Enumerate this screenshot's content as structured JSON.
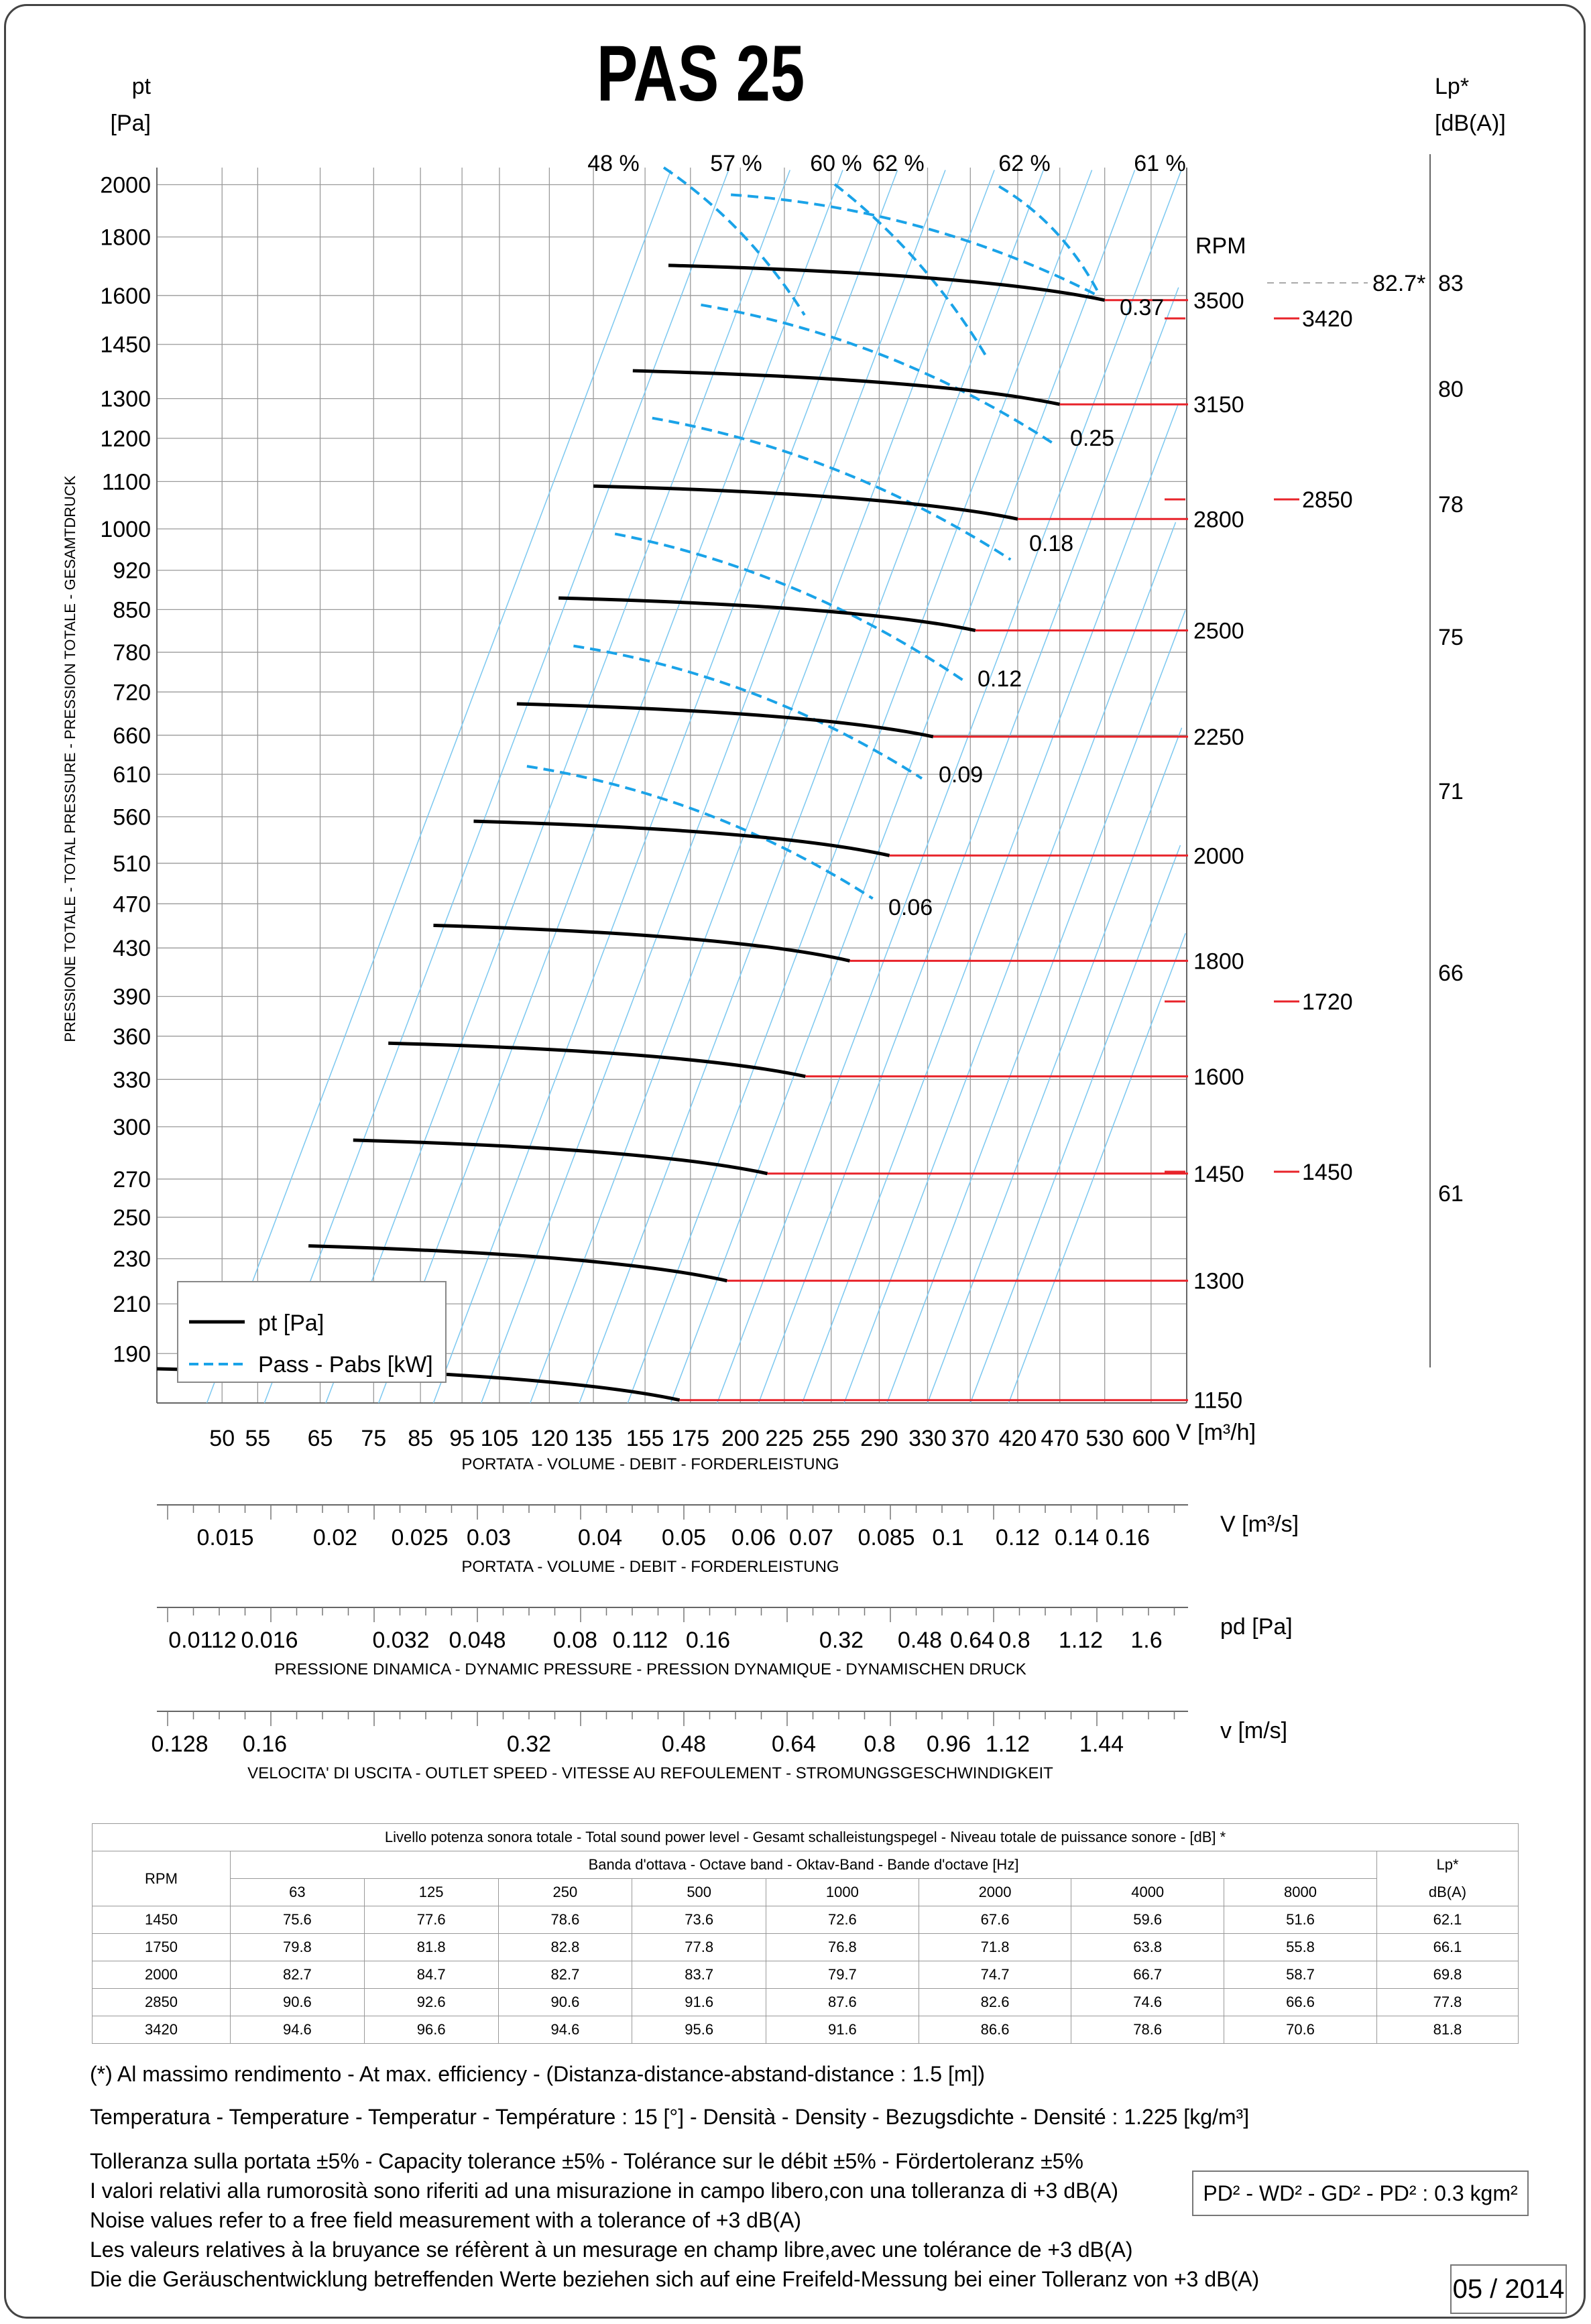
{
  "title": "PAS 25",
  "left_axis": {
    "unit_top": "pt",
    "unit_bottom": "[Pa]",
    "label": "PRESSIONE TOTALE - TOTAL PRESSURE - PRESSION TOTALE - GESAMTDRUCK"
  },
  "right_axis": {
    "unit_top": "Lp*",
    "unit_bottom": "[dB(A)]"
  },
  "rpm_header": "RPM",
  "legend": {
    "pt": "pt [Pa]",
    "pabs": "Pass - Pabs [kW]"
  },
  "colors": {
    "pressure_curve": "#000000",
    "power_curve": "#1aa3e8",
    "rpm_line": "#e8232a",
    "grid": "#9a9a9a",
    "system_line": "#7cc8f0"
  },
  "chart_data": {
    "type": "line",
    "title": "PAS 25",
    "xlabel": "PORTATA - VOLUME - DEBIT - FORDERLEISTUNG",
    "ylabel": "PRESSIONE TOTALE - TOTAL PRESSURE - PRESSION TOTALE - GESAMTDRUCK",
    "x_unit": "V [m³/h]",
    "x_scale": "log",
    "y_scale": "log",
    "xlim": [
      42,
      660
    ],
    "ylim": [
      172,
      2070
    ],
    "x_ticks": [
      "50",
      "55",
      "65",
      "75",
      "85",
      "95",
      "105",
      "120",
      "135",
      "155",
      "175",
      "200",
      "225",
      "255",
      "290",
      "330",
      "370",
      "420",
      "470",
      "530",
      "600"
    ],
    "y_ticks": [
      "2000",
      "1800",
      "1600",
      "1450",
      "1300",
      "1200",
      "1100",
      "1000",
      "920",
      "850",
      "780",
      "720",
      "660",
      "610",
      "560",
      "510",
      "470",
      "430",
      "390",
      "360",
      "330",
      "300",
      "270",
      "250",
      "230",
      "210",
      "190"
    ],
    "efficiency_labels": [
      "48 %",
      "57 %",
      "60 %",
      "62 %",
      "62 %",
      "61 %"
    ],
    "series": [
      {
        "name": "3500",
        "x": [
          165,
          530
        ],
        "y": [
          1700,
          1585
        ]
      },
      {
        "name": "3150",
        "x": [
          150,
          470
        ],
        "y": [
          1375,
          1285
        ]
      },
      {
        "name": "2800",
        "x": [
          135,
          420
        ],
        "y": [
          1090,
          1020
        ]
      },
      {
        "name": "2500",
        "x": [
          123,
          375
        ],
        "y": [
          870,
          815
        ]
      },
      {
        "name": "2250",
        "x": [
          110,
          335
        ],
        "y": [
          703,
          658
        ]
      },
      {
        "name": "2000",
        "x": [
          98,
          298
        ],
        "y": [
          555,
          518
        ]
      },
      {
        "name": "1800",
        "x": [
          88,
          268
        ],
        "y": [
          450,
          419
        ]
      },
      {
        "name": "1600",
        "x": [
          78,
          238
        ],
        "y": [
          355,
          332
        ]
      },
      {
        "name": "1450",
        "x": [
          71,
          215
        ],
        "y": [
          292,
          273
        ]
      },
      {
        "name": "1300",
        "x": [
          63,
          193
        ],
        "y": [
          236,
          220
        ]
      },
      {
        "name": "1150",
        "x": [
          56,
          170
        ],
        "y": [
          185,
          173
        ]
      }
    ],
    "power_series": [
      {
        "name": "0.37",
        "x": [
          195,
          520
        ],
        "y": [
          1960,
          1600
        ]
      },
      {
        "name": "0.25",
        "x": [
          180,
          460
        ],
        "y": [
          1570,
          1190
        ]
      },
      {
        "name": "0.18",
        "x": [
          158,
          412
        ],
        "y": [
          1250,
          940
        ]
      },
      {
        "name": "0.12",
        "x": [
          143,
          365
        ],
        "y": [
          990,
          735
        ]
      },
      {
        "name": "0.09",
        "x": [
          128,
          325
        ],
        "y": [
          790,
          605
        ]
      },
      {
        "name": "0.06",
        "x": [
          113,
          285
        ],
        "y": [
          620,
          475
        ]
      }
    ],
    "rpm_markers": [
      "3500",
      "3150",
      "2800",
      "2500",
      "2250",
      "2000",
      "1800",
      "1600",
      "1450",
      "1300",
      "1150"
    ],
    "sound_levels_lp": [
      "83",
      "80",
      "78",
      "75",
      "71",
      "66",
      "61"
    ],
    "sound_markers": [
      "82.7*",
      "3420",
      "2850",
      "1720",
      "1450"
    ]
  },
  "scales": {
    "flow_m3s": {
      "unit": "V  [m³/s]",
      "label": "PORTATA - VOLUME - DEBIT - FORDERLEISTUNG",
      "ticks": [
        "0.015",
        "0.02",
        "0.025",
        "0.03",
        "0.04",
        "0.05",
        "0.06",
        "0.07",
        "0.085",
        "0.1",
        "0.12",
        "0.14",
        "0.16"
      ]
    },
    "dynamic_pressure": {
      "unit": "pd  [Pa]",
      "label": "PRESSIONE DINAMICA - DYNAMIC PRESSURE - PRESSION DYNAMIQUE - DYNAMISCHEN DRUCK",
      "ticks": [
        "0.0112",
        "0.016",
        "0.032",
        "0.048",
        "0.08",
        "0.112",
        "0.16",
        "0.32",
        "0.48",
        "0.64",
        "0.8",
        "1.12",
        "1.6"
      ]
    },
    "outlet_speed": {
      "unit": "v  [m/s]",
      "label": "VELOCITA' DI USCITA - OUTLET SPEED - VITESSE AU REFOULEMENT - STROMUNGSGESCHWINDIGKEIT",
      "ticks": [
        "0.128",
        "0.16",
        "0.32",
        "0.48",
        "0.64",
        "0.8",
        "0.96",
        "1.12",
        "1.44"
      ]
    }
  },
  "sound_table": {
    "caption": "Livello potenza sonora totale - Total sound power level - Gesamt schalleistungspegel - Niveau totale de puissance sonore - [dB]   *",
    "band_header": "Banda d'ottava - Octave band - Oktav-Band - Bande d'octave [Hz]",
    "rpm_header": "RPM",
    "lp_header": "Lp*",
    "lp_unit": "dB(A)",
    "bands": [
      "63",
      "125",
      "250",
      "500",
      "1000",
      "2000",
      "4000",
      "8000"
    ],
    "rows": [
      {
        "rpm": "1450",
        "values": [
          "75.6",
          "77.6",
          "78.6",
          "73.6",
          "72.6",
          "67.6",
          "59.6",
          "51.6"
        ],
        "lp": "62.1"
      },
      {
        "rpm": "1750",
        "values": [
          "79.8",
          "81.8",
          "82.8",
          "77.8",
          "76.8",
          "71.8",
          "63.8",
          "55.8"
        ],
        "lp": "66.1"
      },
      {
        "rpm": "2000",
        "values": [
          "82.7",
          "84.7",
          "82.7",
          "83.7",
          "79.7",
          "74.7",
          "66.7",
          "58.7"
        ],
        "lp": "69.8"
      },
      {
        "rpm": "2850",
        "values": [
          "90.6",
          "92.6",
          "90.6",
          "91.6",
          "87.6",
          "82.6",
          "74.6",
          "66.6"
        ],
        "lp": "77.8"
      },
      {
        "rpm": "3420",
        "values": [
          "94.6",
          "96.6",
          "94.6",
          "95.6",
          "91.6",
          "86.6",
          "78.6",
          "70.6"
        ],
        "lp": "81.8"
      }
    ]
  },
  "notes": {
    "efficiency": "(*) Al massimo rendimento - At max. efficiency - (Distanza-distance-abstand-distance : 1.5 [m])",
    "conditions": "Temperatura - Temperature - Temperatur - Température : 15 [°]  -  Densità - Density - Bezugsdichte - Densité : 1.225 [kg/m³]",
    "tolerance1": "Tolleranza sulla portata  ±5% - Capacity tolerance ±5% - Tolérance sur le débit ±5% - Förder­toleranz ±5%",
    "tolerance2": "I valori relativi alla rumorosità sono riferiti ad una misurazione in campo libero,con una tolleranza di +3 dB(A)",
    "tolerance3": "Noise values refer to a free field measurement with a tolerance of +3 dB(A)",
    "tolerance4": "Les valeurs relatives à la bruyance se réfèrent à un mesurage en champ libre,avec une tolérance de +3 dB(A)",
    "tolerance5": "Die die Geräuschentwicklung betreffenden Werte beziehen sich auf eine Freifeld-Messung bei einer Tolleranz von +3 dB(A)"
  },
  "inertia": "PD² -  WD² - GD² -  PD²  :  0.3 kgm²",
  "date": "05 / 2014"
}
